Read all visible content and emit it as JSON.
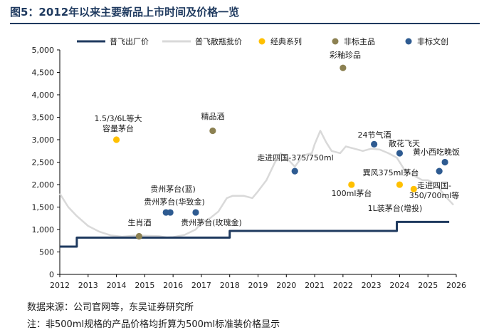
{
  "header": {
    "title": "图5：2012年以来主要新品上市时间及价格一览"
  },
  "legend": {
    "items": [
      {
        "label": "普飞出厂价",
        "kind": "line",
        "color": "#1f3a5f"
      },
      {
        "label": "普飞散瓶批价",
        "kind": "line",
        "color": "#d9d9d9"
      },
      {
        "label": "经典系列",
        "kind": "dot",
        "color": "#ffc000"
      },
      {
        "label": "非标主品",
        "kind": "dot",
        "color": "#8c8152"
      },
      {
        "label": "非标文创",
        "kind": "dot",
        "color": "#2e5b91"
      }
    ]
  },
  "chart_data": {
    "type": "scatter",
    "title": "",
    "xlabel": "",
    "ylabel": "",
    "xlim": [
      2012,
      2026
    ],
    "ylim": [
      0,
      5000
    ],
    "x_ticks": [
      "2012",
      "2013",
      "2014",
      "2015",
      "2016",
      "2017",
      "2018",
      "2019",
      "2020",
      "2021",
      "2022",
      "2023",
      "2024",
      "2025",
      "2026"
    ],
    "y_ticks": [
      "0",
      "500",
      "1,000",
      "1,500",
      "2,000",
      "2,500",
      "3,000",
      "3,500",
      "4,000",
      "4,500",
      "5,000"
    ],
    "grid": false,
    "legend_position": "top",
    "series": [
      {
        "name": "普飞出厂价",
        "type": "step",
        "color": "#1f3a5f",
        "points": [
          [
            2012,
            619
          ],
          [
            2012.6,
            619
          ],
          [
            2012.6,
            819
          ],
          [
            2018,
            819
          ],
          [
            2018,
            969
          ],
          [
            2023.9,
            969
          ],
          [
            2023.9,
            1169
          ],
          [
            2025.75,
            1169
          ]
        ]
      },
      {
        "name": "普飞散瓶批价",
        "type": "line",
        "color": "#d9d9d9",
        "points": [
          [
            2012,
            1800
          ],
          [
            2012.3,
            1500
          ],
          [
            2012.6,
            1300
          ],
          [
            2013,
            1080
          ],
          [
            2013.4,
            950
          ],
          [
            2013.8,
            870
          ],
          [
            2014.2,
            840
          ],
          [
            2014.6,
            860
          ],
          [
            2015,
            860
          ],
          [
            2015.5,
            850
          ],
          [
            2015.8,
            820
          ],
          [
            2016,
            830
          ],
          [
            2016.4,
            880
          ],
          [
            2016.8,
            1000
          ],
          [
            2017,
            1150
          ],
          [
            2017.3,
            1250
          ],
          [
            2017.6,
            1400
          ],
          [
            2017.9,
            1700
          ],
          [
            2018.1,
            1750
          ],
          [
            2018.5,
            1750
          ],
          [
            2018.8,
            1700
          ],
          [
            2019,
            1850
          ],
          [
            2019.3,
            2100
          ],
          [
            2019.6,
            2500
          ],
          [
            2019.8,
            2700
          ],
          [
            2020,
            2600
          ],
          [
            2020.3,
            2400
          ],
          [
            2020.6,
            2650
          ],
          [
            2020.9,
            2700
          ],
          [
            2021,
            2900
          ],
          [
            2021.2,
            3200
          ],
          [
            2021.4,
            2950
          ],
          [
            2021.6,
            2750
          ],
          [
            2021.9,
            2700
          ],
          [
            2022.1,
            2850
          ],
          [
            2022.4,
            2800
          ],
          [
            2022.7,
            2750
          ],
          [
            2023,
            2800
          ],
          [
            2023.3,
            2780
          ],
          [
            2023.6,
            2700
          ],
          [
            2023.9,
            2600
          ],
          [
            2024.2,
            2300
          ],
          [
            2024.5,
            2200
          ],
          [
            2024.8,
            2100
          ],
          [
            2025,
            2100
          ],
          [
            2025.3,
            2000
          ],
          [
            2025.6,
            1750
          ],
          [
            2025.9,
            1550
          ]
        ]
      },
      {
        "name": "经典系列",
        "type": "scatter",
        "color": "#ffc000",
        "points": [
          {
            "x": 2014.0,
            "y": 3000,
            "label": "1.5/3/6L等大容量茅台"
          },
          {
            "x": 2022.3,
            "y": 1999,
            "label": "100ml茅台"
          },
          {
            "x": 2024.0,
            "y": 1999,
            "label": "巽风375ml茅台"
          },
          {
            "x": 2024.5,
            "y": 1900,
            "label": "1L装茅台(增投)"
          }
        ]
      },
      {
        "name": "非标主品",
        "type": "scatter",
        "color": "#8c8152",
        "points": [
          {
            "x": 2014.8,
            "y": 850,
            "label": "生肖酒"
          },
          {
            "x": 2017.4,
            "y": 3199,
            "label": "精品酒"
          },
          {
            "x": 2022.0,
            "y": 4599,
            "label": "彩釉珍品"
          }
        ]
      },
      {
        "name": "非标文创",
        "type": "scatter",
        "color": "#2e5b91",
        "points": [
          {
            "x": 2015.75,
            "y": 1380,
            "label": "贵州茅台(蓝)"
          },
          {
            "x": 2015.9,
            "y": 1380,
            "label": "贵州茅台(华致金)"
          },
          {
            "x": 2016.8,
            "y": 1380,
            "label": "贵州茅台(玫瑰金)"
          },
          {
            "x": 2020.3,
            "y": 2300,
            "label": "走进四国-375/750ml"
          },
          {
            "x": 2023.1,
            "y": 2899,
            "label": "24节气酒"
          },
          {
            "x": 2024.0,
            "y": 2699,
            "label": "散花飞天"
          },
          {
            "x": 2025.4,
            "y": 2300,
            "label": "走进四国-350/700ml等"
          },
          {
            "x": 2025.6,
            "y": 2500,
            "label": "黄小西吃晚饭"
          }
        ]
      }
    ]
  },
  "annotations": [
    {
      "lines": [
        "1.5/3/6L等大",
        "容量茅台"
      ]
    },
    {
      "lines": [
        "精品酒"
      ]
    },
    {
      "lines": [
        "彩釉珍品"
      ]
    },
    {
      "lines": [
        "贵州茅台(蓝)"
      ]
    },
    {
      "lines": [
        "贵州茅台(华致金)"
      ]
    },
    {
      "lines": [
        "贵州茅台(玫瑰金)"
      ]
    },
    {
      "lines": [
        "生肖酒"
      ]
    },
    {
      "lines": [
        "走进四国-375/750ml"
      ]
    },
    {
      "lines": [
        "24节气酒"
      ]
    },
    {
      "lines": [
        "散花飞天"
      ]
    },
    {
      "lines": [
        "黄小西吃晚饭"
      ]
    },
    {
      "lines": [
        "巽风375ml茅台"
      ]
    },
    {
      "lines": [
        "100ml茅台"
      ]
    },
    {
      "lines": [
        "走进四国-",
        "350/700ml等"
      ]
    },
    {
      "lines": [
        "1L装茅台(增投)"
      ]
    }
  ],
  "footer": {
    "source": "数据来源：公司官网等，东吴证券研究所",
    "note": "注：非500ml规格的产品价格均折算为500ml标准装价格显示"
  }
}
